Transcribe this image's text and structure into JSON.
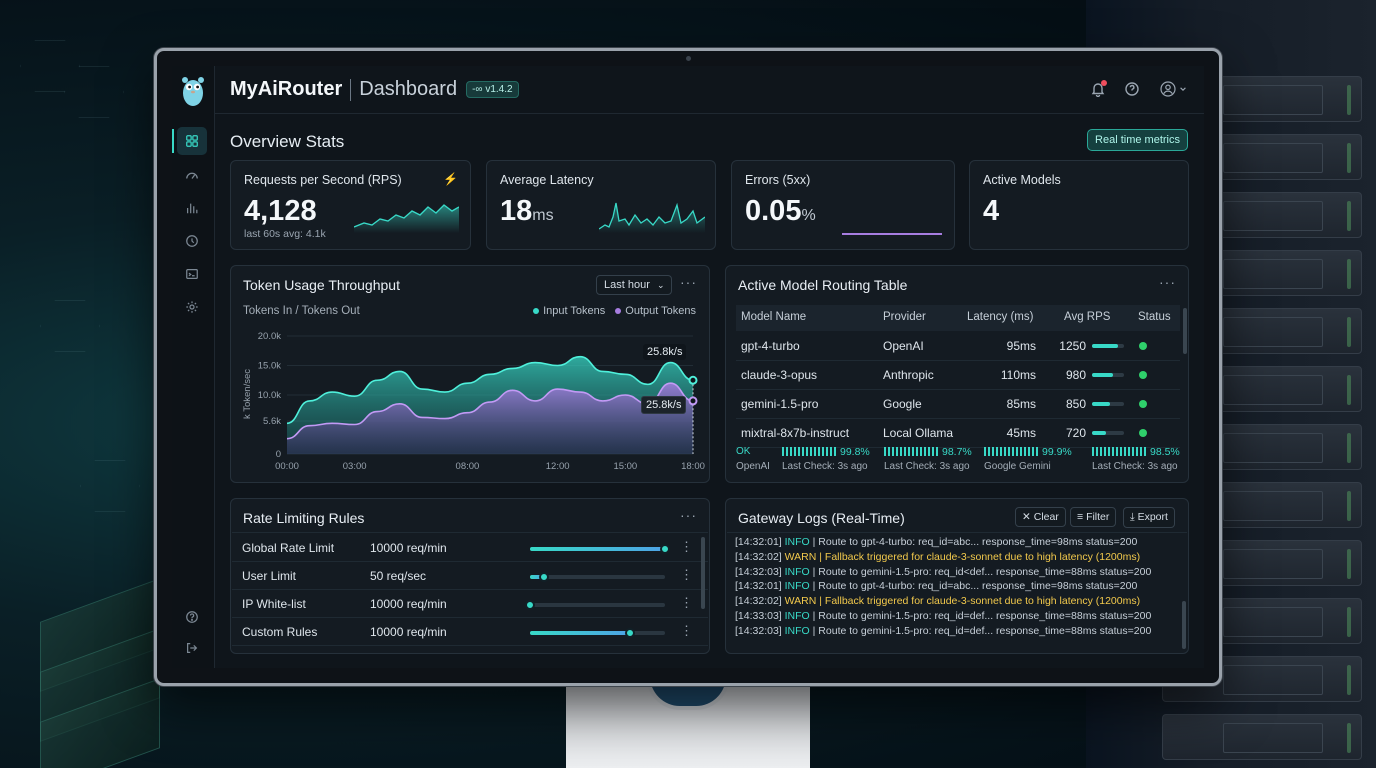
{
  "header": {
    "app_name": "MyAiRouter",
    "page": "Dashboard",
    "version": "v1.4.2"
  },
  "overview": {
    "title": "Overview Stats",
    "realtime_button": "Real time metrics"
  },
  "stats": [
    {
      "label": "Requests per Second (RPS)",
      "value": "4,128",
      "unit": "",
      "sub": "last 60s avg: 4.1k"
    },
    {
      "label": "Average Latency",
      "value": "18",
      "unit": "ms",
      "sub": ""
    },
    {
      "label": "Errors (5xx)",
      "value": "0.05",
      "unit": "%",
      "sub": ""
    },
    {
      "label": "Active Models",
      "value": "4",
      "unit": "",
      "sub": ""
    }
  ],
  "token_chart": {
    "title": "Token Usage Throughput",
    "range": "Last hour",
    "subtitle": "Tokens In / Tokens Out",
    "ylabel": "k Token/sec",
    "legend": [
      "Input Tokens",
      "Output Tokens"
    ],
    "callouts": [
      "25.8k/s",
      "25.8k/s"
    ],
    "colors": {
      "input": "#38d9c7",
      "output": "#a77de0"
    }
  },
  "chart_data": {
    "type": "area",
    "x": [
      "00:00",
      "01:00",
      "02:00",
      "03:00",
      "04:00",
      "05:00",
      "06:00",
      "07:00",
      "08:00",
      "09:00",
      "10:00",
      "11:00",
      "12:00",
      "13:00",
      "14:00",
      "15:00",
      "16:00",
      "17:00",
      "18:00"
    ],
    "yticks": [
      "0",
      "5.6k",
      "10.0k",
      "15.0k",
      "20.0k"
    ],
    "xticks": [
      "00:00",
      "03:00",
      "08:00",
      "12:00",
      "15:00",
      "18:00"
    ],
    "ylim": [
      0,
      20000
    ],
    "series": [
      {
        "name": "Input Tokens",
        "values": [
          5200,
          9000,
          10500,
          9800,
          12500,
          14000,
          11000,
          10500,
          12000,
          13500,
          14500,
          15500,
          15000,
          16500,
          14000,
          13500,
          11800,
          15500,
          12500
        ]
      },
      {
        "name": "Output Tokens",
        "values": [
          2600,
          4800,
          5200,
          5000,
          7200,
          8500,
          6200,
          6000,
          7000,
          8800,
          10800,
          9000,
          11000,
          10500,
          9000,
          10000,
          8500,
          12000,
          9000
        ]
      }
    ]
  },
  "routing": {
    "title": "Active Model Routing Table",
    "columns": [
      "Model Name",
      "Provider",
      "Latency (ms)",
      "Avg RPS",
      "Status"
    ],
    "rows": [
      {
        "model": "gpt-4-turbo",
        "provider": "OpenAI",
        "latency": "95ms",
        "rps": "1250",
        "load": 0.8
      },
      {
        "model": "claude-3-opus",
        "provider": "Anthropic",
        "latency": "110ms",
        "rps": "980",
        "load": 0.65
      },
      {
        "model": "gemini-1.5-pro",
        "provider": "Google",
        "latency": "85ms",
        "rps": "850",
        "load": 0.55
      },
      {
        "model": "mixtral-8x7b-instruct",
        "provider": "Local Ollama",
        "latency": "45ms",
        "rps": "720",
        "load": 0.45
      }
    ],
    "health": [
      {
        "state": "OK",
        "pct": "99.8%",
        "name": "OpenAI",
        "check": "Last Check: 3s ago"
      },
      {
        "state": "",
        "pct": "98.7%",
        "name": "",
        "check": "Last Check: 3s ago"
      },
      {
        "state": "",
        "pct": "99.9%",
        "name": "Google Gemini",
        "check": ""
      },
      {
        "state": "",
        "pct": "98.5%",
        "name": "",
        "check": "Last Check: 3s ago"
      }
    ]
  },
  "rate_limits": {
    "title": "Rate Limiting Rules",
    "rows": [
      {
        "name": "Global Rate Limit",
        "value": "10000 req/min",
        "level": 1.0
      },
      {
        "name": "User Limit",
        "value": "50 req/sec",
        "level": 0.1
      },
      {
        "name": "IP White-list",
        "value": "10000 req/min",
        "level": 0.0
      },
      {
        "name": "Custom Rules",
        "value": "10000 req/min",
        "level": 0.74
      }
    ]
  },
  "logs": {
    "title": "Gateway Logs (Real-Time)",
    "buttons": {
      "clear": "Clear",
      "filter": "Filter",
      "export": "Export"
    },
    "lines": [
      {
        "ts": "[14:32:01]",
        "level": "INFO",
        "msg": "| Route to gpt-4-turbo: req_id=abc... response_time=98ms status=200"
      },
      {
        "ts": "[14:32:02]",
        "level": "WARN",
        "msg": "| Fallback triggered for claude-3-sonnet due to high latency (1200ms)"
      },
      {
        "ts": "[14:32:03]",
        "level": "INFO",
        "msg": "| Route to gemini-1.5-pro: req_id<def... response_time=88ms status=200"
      },
      {
        "ts": "[14:32:01]",
        "level": "INFO",
        "msg": "| Route to gpt-4-turbo: req_id=abc... response_time=98ms status=200"
      },
      {
        "ts": "[14:32:02]",
        "level": "WARN",
        "msg": "| Fallback triggered for claude-3-sonnet due to high latency (1200ms)"
      },
      {
        "ts": "[14:33:03]",
        "level": "INFO",
        "msg": "| Route to gemini-1.5-pro: req_id=def... response_time=88ms status=200"
      },
      {
        "ts": "[14:32:03]",
        "level": "INFO",
        "msg": "| Route to gemini-1.5-pro: req_id=def... response_time=88ms status=200"
      }
    ]
  },
  "sidebar": {
    "items": [
      "dashboard-icon",
      "gauge-icon",
      "bar-chart-icon",
      "history-icon",
      "terminal-icon",
      "settings-icon"
    ],
    "bottom": [
      "help-icon",
      "logout-icon"
    ]
  }
}
